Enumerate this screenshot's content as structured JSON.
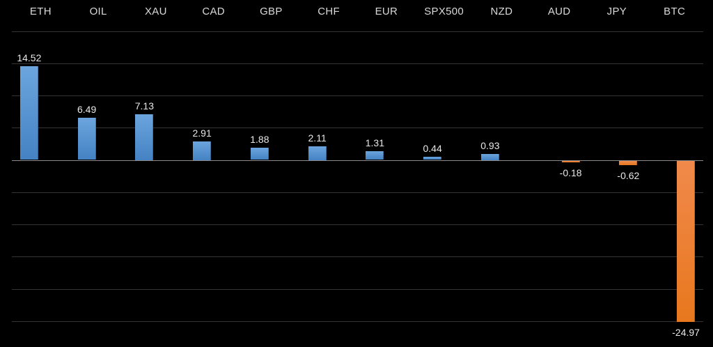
{
  "chart_data": {
    "type": "bar",
    "title": "",
    "categories": [
      "ETH",
      "OIL",
      "XAU",
      "CAD",
      "GBP",
      "CHF",
      "EUR",
      "SPX500",
      "NZD",
      "AUD",
      "JPY",
      "BTC"
    ],
    "values": [
      14.52,
      6.49,
      7.13,
      2.91,
      1.88,
      2.11,
      1.31,
      0.44,
      0.93,
      -0.18,
      -0.62,
      -24.97
    ],
    "data_labels": [
      "14.52",
      "6.49",
      "7.13",
      "2.91",
      "1.88",
      "2.11",
      "1.31",
      "0.44",
      "0.93",
      "-0.18",
      "-0.62",
      "-24.97"
    ],
    "xlabel": "",
    "ylabel": "",
    "ylim": [
      -25,
      20
    ],
    "gridline_step": 5,
    "grid": true,
    "y_tick_labels_visible": false,
    "legend_position": "none",
    "category_labels_position": "top",
    "data_label_position": "outside-end"
  },
  "colors": {
    "background": "#000000",
    "positive_bar_top": "#6ca5de",
    "positive_bar_bottom": "#4482c3",
    "negative_bar_top": "#f0894b",
    "negative_bar_bottom": "#e8781e",
    "gridline": "#343434",
    "zero_line": "#8a8a8a",
    "text": "#d9d9d9"
  }
}
